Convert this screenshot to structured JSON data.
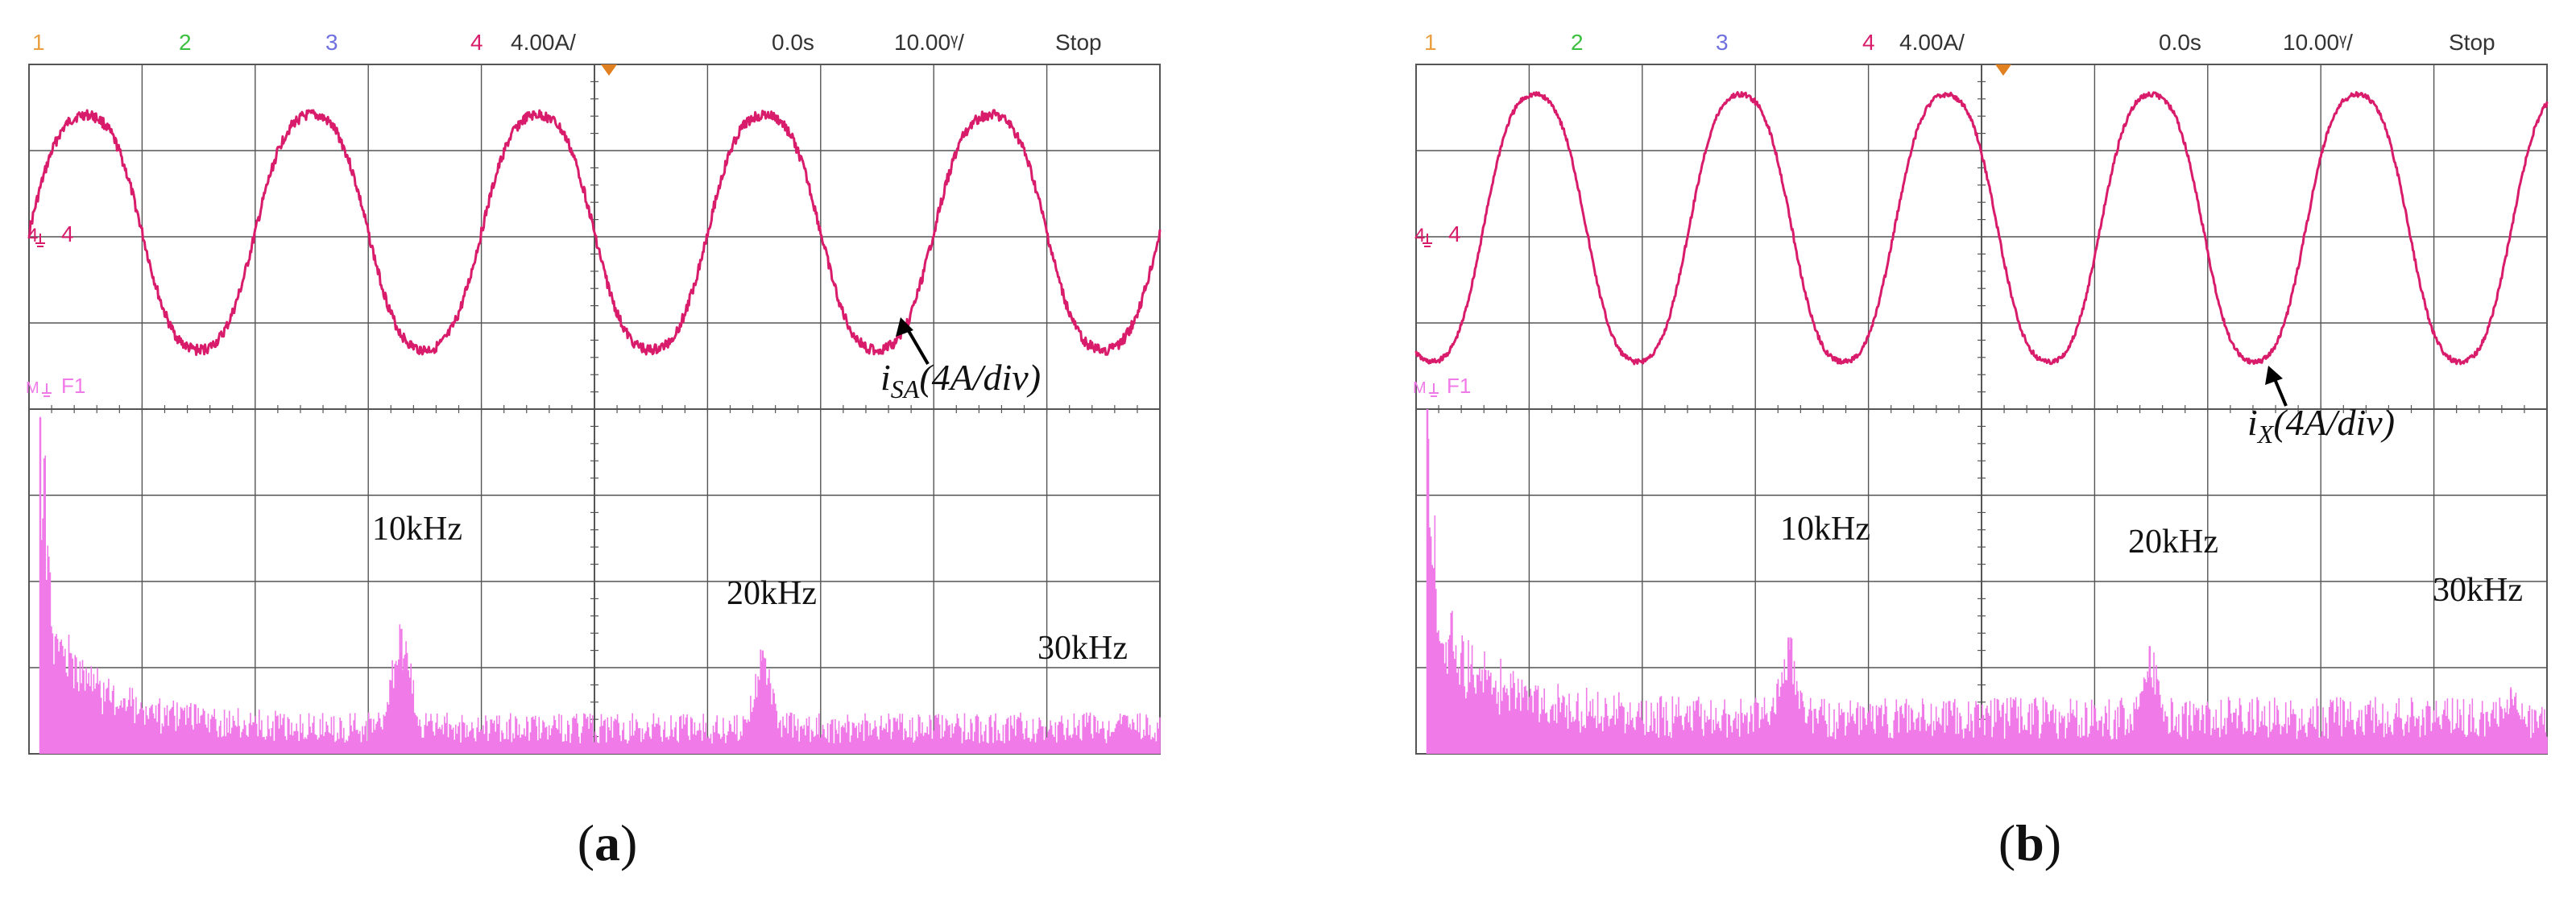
{
  "panels": [
    {
      "id": "a",
      "caption": {
        "open": "(",
        "label": "a",
        "close": ")"
      },
      "header": {
        "ch1": "1",
        "ch2": "2",
        "ch3": "3",
        "ch4": "4",
        "scale": "4.00A/",
        "delay": "0.0s",
        "timebase": "10.00ᵞ/",
        "status": "Stop"
      },
      "markers": {
        "ch4": "4",
        "fft": "F1"
      },
      "trace_label": {
        "main": "i",
        "sub": "SA",
        "rest": "(4A/div)"
      },
      "peak_labels": [
        "10kHz",
        "20kHz",
        "30kHz"
      ]
    },
    {
      "id": "b",
      "caption": {
        "open": "(",
        "label": "b",
        "close": ")"
      },
      "header": {
        "ch1": "1",
        "ch2": "2",
        "ch3": "3",
        "ch4": "4",
        "scale": "4.00A/",
        "delay": "0.0s",
        "timebase": "10.00ᵞ/",
        "status": "Stop"
      },
      "markers": {
        "ch4": "4",
        "fft": "F1"
      },
      "trace_label": {
        "main": "i",
        "sub": "X",
        "rest": "(4A/div)"
      },
      "peak_labels": [
        "10kHz",
        "20kHz",
        "30kHz"
      ]
    }
  ],
  "colors": {
    "ch1": "#e8a040",
    "ch2": "#3cc040",
    "ch3": "#7070e0",
    "ch4": "#d81b6a",
    "fft": "#f07be8",
    "grid": "#555555",
    "trigger": "#e08020"
  },
  "chart_data": [
    {
      "type": "line",
      "panel": "a",
      "title": "",
      "series": [
        {
          "name": "i_SA",
          "x_unit": "div",
          "y_unit": "div",
          "cycles": 5.0,
          "amplitude_div": 1.45,
          "center_div": 1.45,
          "first_peak_x_div": 0.5,
          "x_range_div": [
            0,
            10
          ],
          "distortion_noise_div": 0.06
        },
        {
          "name": "F1",
          "type": "spectrum",
          "x_unit": "kHz",
          "x_range": [
            0,
            31
          ],
          "peaks": [
            {
              "x": 0,
              "height_div": 3.9
            },
            {
              "x": 10,
              "height_div": 1.45
            },
            {
              "x": 20,
              "height_div": 1.2
            },
            {
              "x": 30,
              "height_div": 0.45
            }
          ],
          "noise_floor_div": 0.4
        }
      ],
      "grid": true,
      "divisions_x": 10,
      "divisions_y": 8
    },
    {
      "type": "line",
      "panel": "b",
      "title": "",
      "series": [
        {
          "name": "i_X",
          "x_unit": "div",
          "y_unit": "div",
          "cycles": 5.5,
          "amplitude_div": 1.65,
          "center_div": 1.4,
          "first_peak_x_div": 1.05,
          "x_range_div": [
            0,
            10
          ],
          "distortion_noise_div": 0.03
        },
        {
          "name": "F1",
          "type": "spectrum",
          "x_unit": "kHz",
          "x_range": [
            0,
            31
          ],
          "peaks": [
            {
              "x": 0,
              "height_div": 4.0
            },
            {
              "x": 10,
              "height_div": 1.35
            },
            {
              "x": 20,
              "height_div": 1.25
            },
            {
              "x": 30,
              "height_div": 0.75
            }
          ],
          "noise_floor_div": 0.55
        }
      ],
      "grid": true,
      "divisions_x": 10,
      "divisions_y": 8
    }
  ]
}
